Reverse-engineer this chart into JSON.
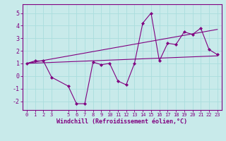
{
  "bg_color": "#c8eaea",
  "line_color": "#800080",
  "grid_color": "#aadddd",
  "xlabel": "Windchill (Refroidissement éolien,°C)",
  "xlabel_fontsize": 6.0,
  "xtick_fontsize": 5.0,
  "ytick_fontsize": 6.0,
  "xticks": [
    0,
    1,
    2,
    3,
    5,
    6,
    7,
    8,
    9,
    10,
    11,
    12,
    13,
    14,
    15,
    16,
    17,
    18,
    19,
    20,
    21,
    22,
    23
  ],
  "yticks": [
    -2,
    -1,
    0,
    1,
    2,
    3,
    4,
    5
  ],
  "xlim": [
    -0.5,
    23.5
  ],
  "ylim": [
    -2.7,
    5.7
  ],
  "jagged_x": [
    0,
    1,
    2,
    3,
    5,
    6,
    7,
    8,
    9,
    10,
    11,
    12,
    13,
    14,
    15,
    16,
    17,
    18,
    19,
    20,
    21,
    22,
    23
  ],
  "jagged_y": [
    1.0,
    1.2,
    1.2,
    -0.1,
    -0.8,
    -2.2,
    -2.2,
    1.1,
    0.9,
    1.0,
    -0.4,
    -0.7,
    1.0,
    4.2,
    5.0,
    1.2,
    2.6,
    2.5,
    3.5,
    3.3,
    3.8,
    2.1,
    1.7
  ],
  "line1_x": [
    0,
    23
  ],
  "line1_y": [
    1.0,
    3.7
  ],
  "line2_x": [
    0,
    23
  ],
  "line2_y": [
    1.0,
    1.6
  ],
  "marker": "D",
  "markersize": 2.2,
  "linewidth": 0.8
}
